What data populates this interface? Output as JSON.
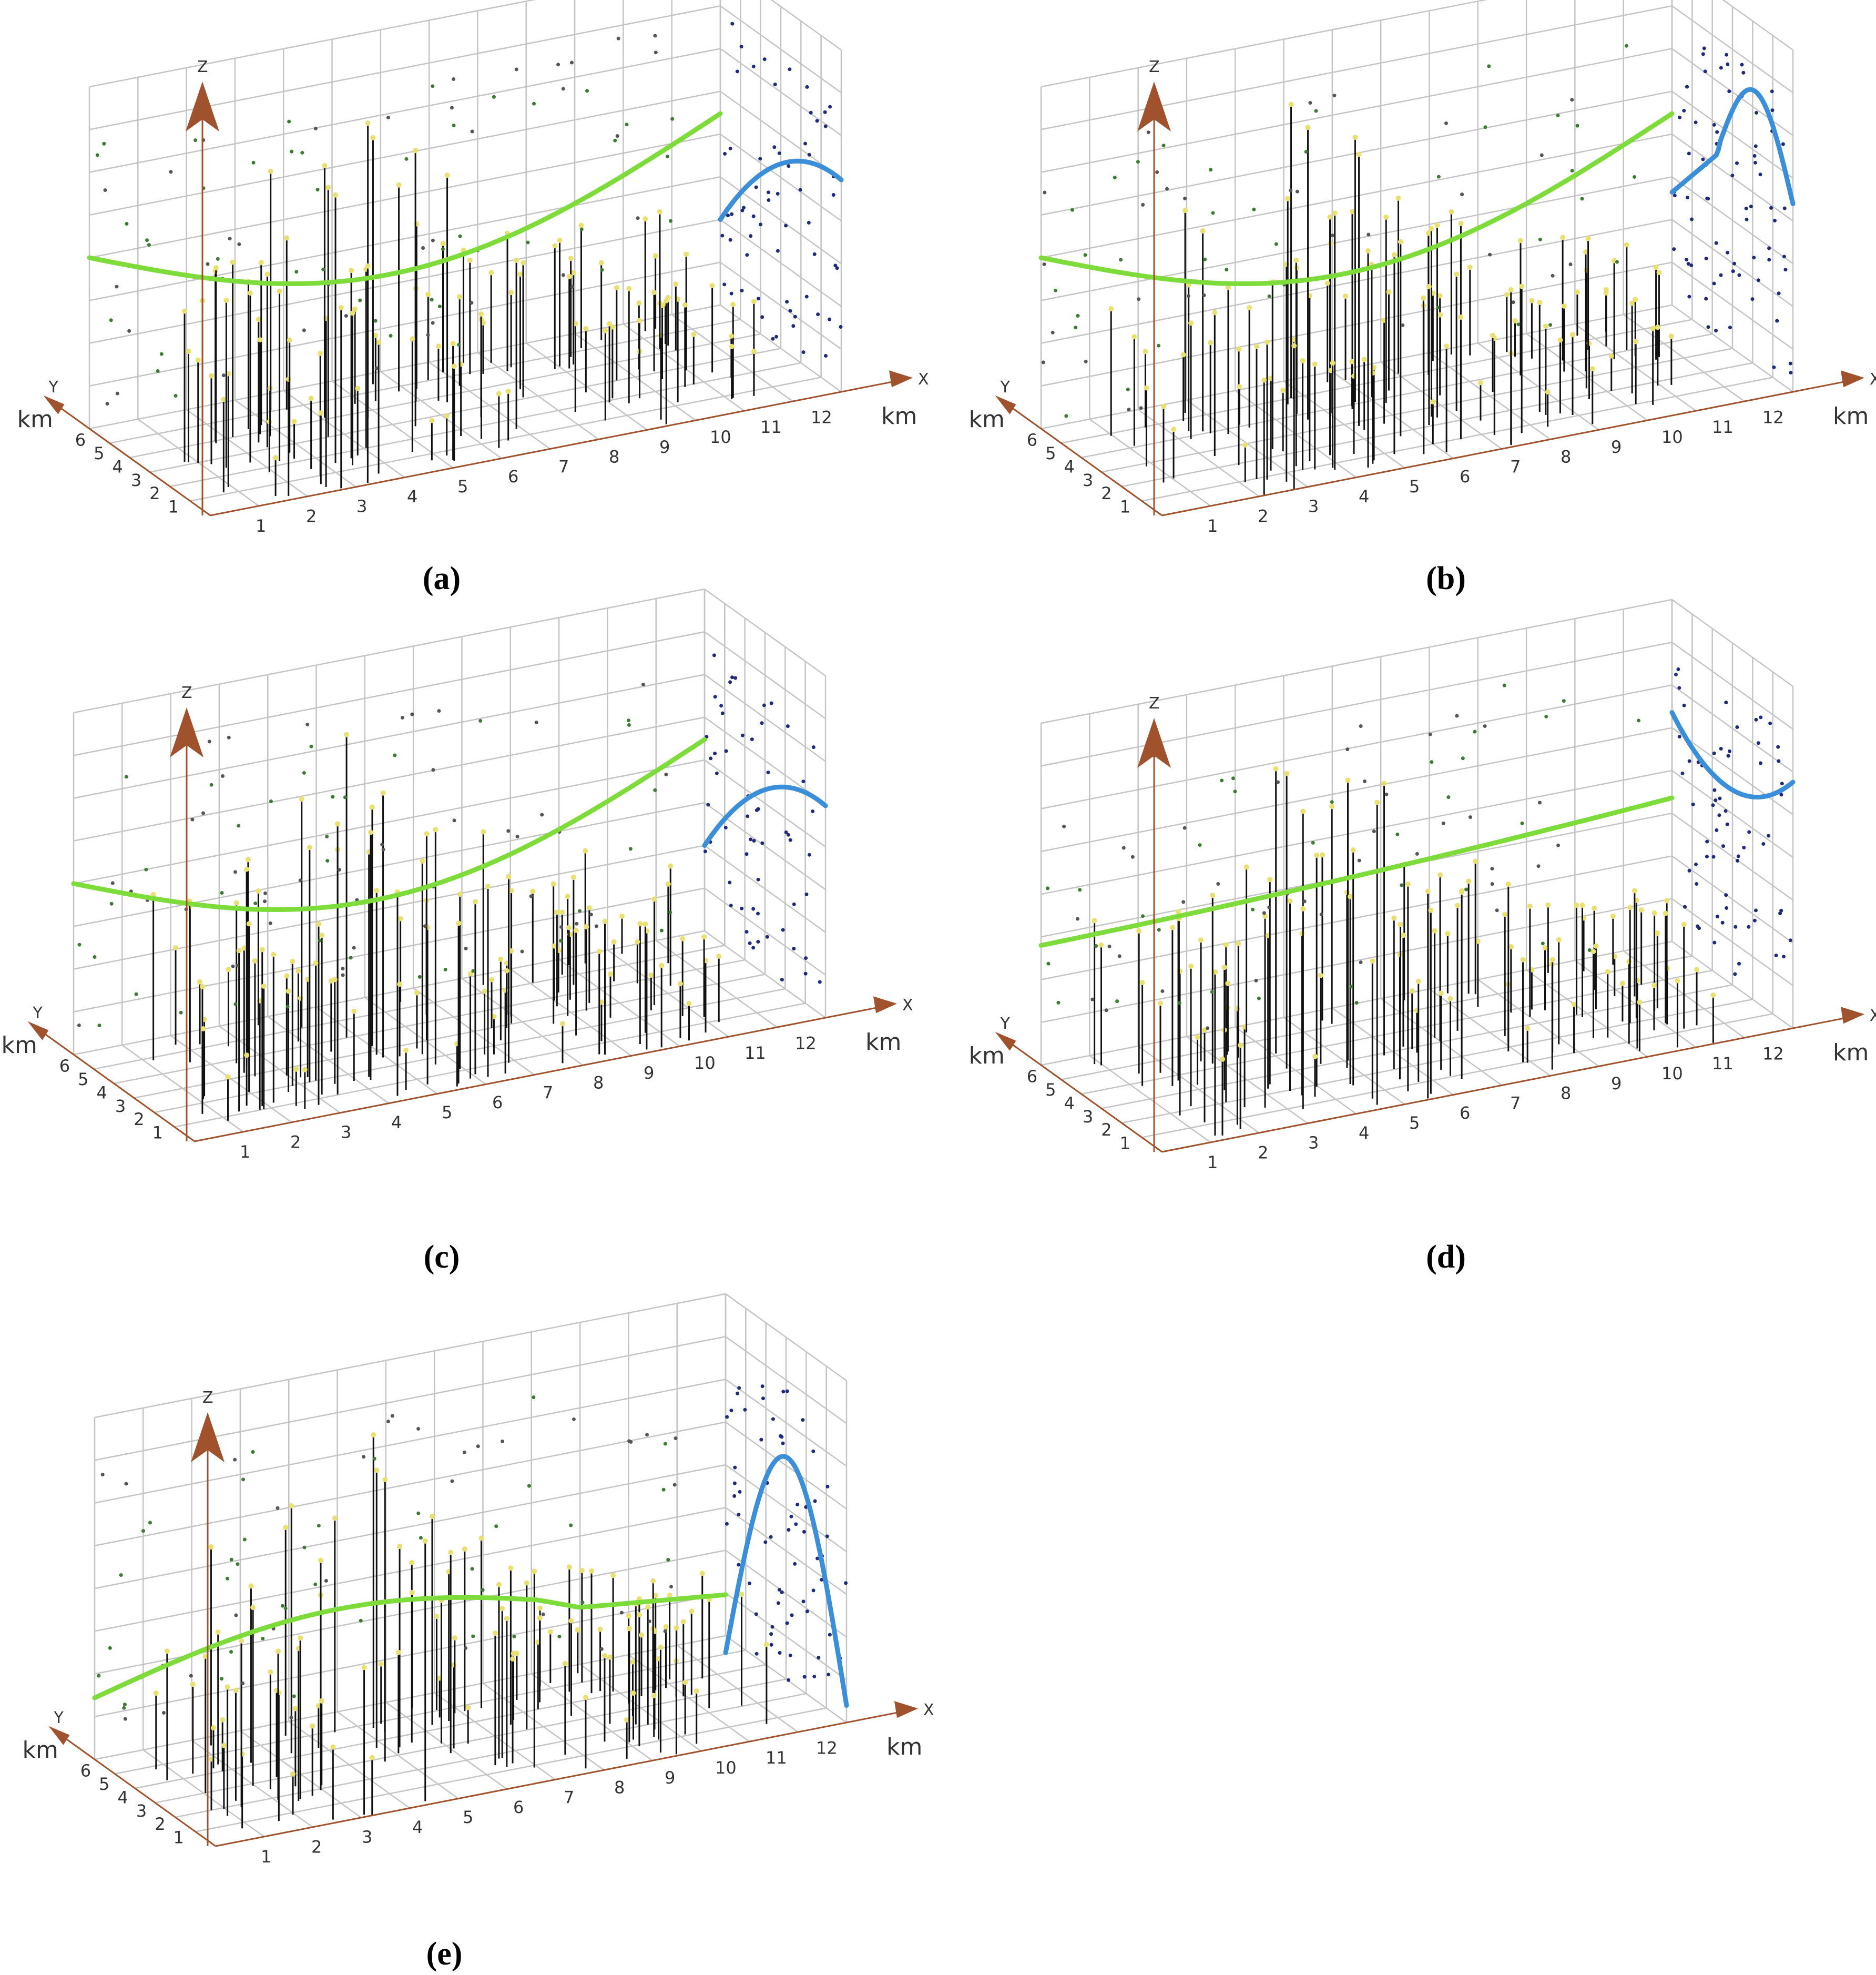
{
  "colors": {
    "green_curve": "#7ddc3a",
    "blue_curve": "#3b8fd8",
    "axis": "#a0522d",
    "grid": "#c4c4c4",
    "well": "#111111",
    "wellhead": "#e8e070",
    "point_blue": "#1f2a7a",
    "point_green": "#3d7a33"
  },
  "chart_data": [
    {
      "type": "scatter",
      "caption": "(a)",
      "x_ticks": [
        "1",
        "2",
        "3",
        "4",
        "5",
        "6",
        "7",
        "8",
        "9",
        "10",
        "11",
        "12"
      ],
      "y_ticks": [
        "1",
        "2",
        "3",
        "4",
        "5",
        "6"
      ],
      "x_axis_label": "X",
      "x_unit": "km",
      "y_axis_label": "Y",
      "y_unit": "km",
      "z_axis_label": "Z",
      "xlim": [
        0,
        12.5
      ],
      "ylim": [
        0,
        6.5
      ],
      "green_curve_shape": "sag",
      "blue_curve_shape": "falling"
    },
    {
      "type": "scatter",
      "caption": "(b)",
      "x_ticks": [
        "1",
        "2",
        "3",
        "4",
        "5",
        "6",
        "7",
        "8",
        "9",
        "10",
        "11",
        "12"
      ],
      "y_ticks": [
        "1",
        "2",
        "3",
        "4",
        "5",
        "6"
      ],
      "x_axis_label": "X",
      "x_unit": "km",
      "y_axis_label": "Y",
      "y_unit": "km",
      "z_axis_label": "Z",
      "xlim": [
        0,
        12.5
      ],
      "ylim": [
        0,
        6.5
      ],
      "green_curve_shape": "sag",
      "blue_curve_shape": "peak"
    },
    {
      "type": "scatter",
      "caption": "(c)",
      "x_ticks": [
        "1",
        "2",
        "3",
        "4",
        "5",
        "6",
        "7",
        "8",
        "9",
        "10",
        "11",
        "12"
      ],
      "y_ticks": [
        "1",
        "2",
        "3",
        "4",
        "5",
        "6"
      ],
      "x_axis_label": "X",
      "x_unit": "km",
      "y_axis_label": "Y",
      "y_unit": "km",
      "z_axis_label": "Z",
      "xlim": [
        0,
        12.5
      ],
      "ylim": [
        0,
        6.5
      ],
      "green_curve_shape": "sag",
      "blue_curve_shape": "falling"
    },
    {
      "type": "scatter",
      "caption": "(d)",
      "x_ticks": [
        "1",
        "2",
        "3",
        "4",
        "5",
        "6",
        "7",
        "8",
        "9",
        "10",
        "11",
        "12"
      ],
      "y_ticks": [
        "1",
        "2",
        "3",
        "4",
        "5",
        "6"
      ],
      "x_axis_label": "X",
      "x_unit": "km",
      "y_axis_label": "Y",
      "y_unit": "km",
      "z_axis_label": "Z",
      "xlim": [
        0,
        12.5
      ],
      "ylim": [
        0,
        6.5
      ],
      "green_curve_shape": "flat",
      "blue_curve_shape": "trough"
    },
    {
      "type": "scatter",
      "caption": "(e)",
      "x_ticks": [
        "1",
        "2",
        "3",
        "4",
        "5",
        "6",
        "7",
        "8",
        "9",
        "10",
        "11",
        "12"
      ],
      "y_ticks": [
        "1",
        "2",
        "3",
        "4",
        "5",
        "6"
      ],
      "x_axis_label": "X",
      "x_unit": "km",
      "y_axis_label": "Y",
      "y_unit": "km",
      "z_axis_label": "Z",
      "xlim": [
        0,
        12.5
      ],
      "ylim": [
        0,
        6.5
      ],
      "green_curve_shape": "hump",
      "blue_curve_shape": "arch"
    }
  ]
}
